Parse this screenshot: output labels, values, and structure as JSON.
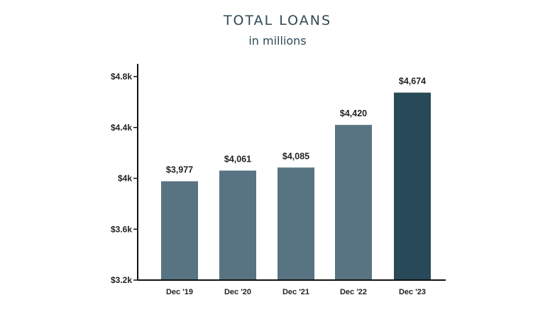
{
  "chart_data": {
    "type": "bar",
    "title": "TOTAL LOANS",
    "subtitle": "in millions",
    "categories": [
      "Dec '19",
      "Dec '20",
      "Dec '21",
      "Dec '22",
      "Dec '23"
    ],
    "values": [
      3977,
      4061,
      4085,
      4420,
      4674
    ],
    "data_labels": [
      "$3,977",
      "$4,061",
      "$4,085",
      "$4,420",
      "$4,674"
    ],
    "y_ticks": [
      3200,
      3600,
      4000,
      4400,
      4800
    ],
    "y_tick_labels": [
      "$3.2k",
      "$3.6k",
      "$4k",
      "$4.4k",
      "$4.8k"
    ],
    "ylim": [
      3200,
      4800
    ],
    "xlabel": "",
    "ylabel": "",
    "grid": false,
    "colors": {
      "bar": "#587482",
      "highlight_bar": "#284a58",
      "axis": "#111111",
      "title": "#2f4a56"
    },
    "highlight_index": 4
  }
}
